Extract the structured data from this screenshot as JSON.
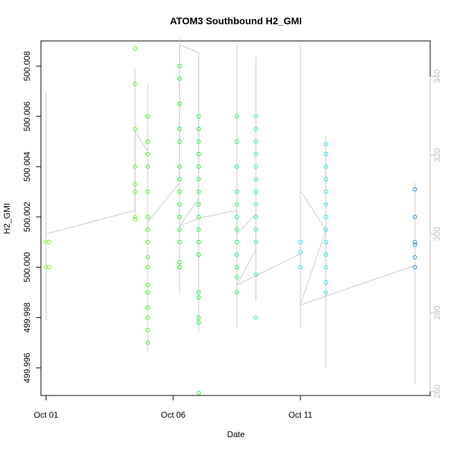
{
  "chart_data": {
    "type": "scatter",
    "title": "ATOM3 Southbound H2_GMI",
    "xlabel": "Date",
    "ylabel": "H2_GMI",
    "x_ticks": [
      "Oct 01",
      "Oct 06",
      "Oct 11"
    ],
    "y_ticks": [
      "499.996",
      "499.998",
      "500.000",
      "500.002",
      "500.004",
      "500.006",
      "500.008"
    ],
    "y2_ticks": [
      "260",
      "280",
      "300",
      "320",
      "340"
    ],
    "xlim": [
      "2016-09-30T19:12",
      "2016-10-16T02:24"
    ],
    "ylim": [
      499.9949,
      500.009
    ],
    "y2lim": [
      259,
      349
    ],
    "grid": false,
    "legend": "none",
    "colors": {
      "axis": "#000000",
      "line": "#c8c8c8",
      "right_axis": "#bfbfbf"
    },
    "series": [
      {
        "type": "points",
        "points": [
          [
            "2016-10-01T00:00",
            500.001,
            "#88ee22"
          ],
          [
            "2016-10-01T03:00",
            500.001,
            "#88ee22"
          ],
          [
            "2016-10-01T00:00",
            500.0,
            "#88ee22"
          ],
          [
            "2016-10-01T03:00",
            500.0,
            "#88ee22"
          ],
          [
            "2016-10-04T12:00",
            500.0087,
            "#66ee22"
          ],
          [
            "2016-10-04T12:00",
            500.0073,
            "#66ee22"
          ],
          [
            "2016-10-04T12:00",
            500.0055,
            "#66ee22"
          ],
          [
            "2016-10-04T12:00",
            500.004,
            "#66ee22"
          ],
          [
            "2016-10-04T12:00",
            500.0033,
            "#66ee22"
          ],
          [
            "2016-10-04T12:00",
            500.003,
            "#66ee22"
          ],
          [
            "2016-10-04T12:00",
            500.002,
            "#66ee22"
          ],
          [
            "2016-10-04T12:00",
            500.0019,
            "#66ee22"
          ],
          [
            "2016-10-05T00:00",
            500.006,
            "#44ee22"
          ],
          [
            "2016-10-05T00:00",
            500.005,
            "#44ee22"
          ],
          [
            "2016-10-05T00:00",
            500.004,
            "#44ee22"
          ],
          [
            "2016-10-05T00:00",
            500.003,
            "#44ee22"
          ],
          [
            "2016-10-05T00:00",
            500.002,
            "#44ee22"
          ],
          [
            "2016-10-05T00:00",
            500.001,
            "#44ee22"
          ],
          [
            "2016-10-05T00:00",
            500.0,
            "#44ee22"
          ],
          [
            "2016-10-05T00:00",
            499.999,
            "#44ee22"
          ],
          [
            "2016-10-05T00:00",
            499.998,
            "#44ee22"
          ],
          [
            "2016-10-05T00:00",
            499.997,
            "#44ee22"
          ],
          [
            "2016-10-05T00:00",
            499.9975,
            "#44ee22"
          ],
          [
            "2016-10-05T00:00",
            499.9984,
            "#44ee22"
          ],
          [
            "2016-10-05T00:00",
            499.9993,
            "#44ee22"
          ],
          [
            "2016-10-05T00:00",
            500.0004,
            "#44ee22"
          ],
          [
            "2016-10-05T00:00",
            500.0015,
            "#44ee22"
          ],
          [
            "2016-10-05T00:00",
            500.0045,
            "#44ee22"
          ],
          [
            "2016-10-06T06:00",
            500.008,
            "#22ee33"
          ],
          [
            "2016-10-06T06:00",
            500.0075,
            "#22ee33"
          ],
          [
            "2016-10-06T06:00",
            500.0065,
            "#22ee33"
          ],
          [
            "2016-10-06T06:00",
            500.0055,
            "#22ee33"
          ],
          [
            "2016-10-06T06:00",
            500.005,
            "#22ee33"
          ],
          [
            "2016-10-06T06:00",
            500.004,
            "#22ee33"
          ],
          [
            "2016-10-06T06:00",
            500.0035,
            "#22ee33"
          ],
          [
            "2016-10-06T06:00",
            500.003,
            "#22ee33"
          ],
          [
            "2016-10-06T06:00",
            500.0025,
            "#22ee33"
          ],
          [
            "2016-10-06T06:00",
            500.002,
            "#22ee33"
          ],
          [
            "2016-10-06T06:00",
            500.0015,
            "#22ee33"
          ],
          [
            "2016-10-06T06:00",
            500.001,
            "#22ee33"
          ],
          [
            "2016-10-06T06:00",
            500.0002,
            "#22ee33"
          ],
          [
            "2016-10-06T06:00",
            500.0,
            "#22ee33"
          ],
          [
            "2016-10-07T00:00",
            500.006,
            "#22ee44"
          ],
          [
            "2016-10-07T00:00",
            500.0055,
            "#22ee44"
          ],
          [
            "2016-10-07T00:00",
            500.005,
            "#22ee44"
          ],
          [
            "2016-10-07T00:00",
            500.0045,
            "#22ee44"
          ],
          [
            "2016-10-07T00:00",
            500.004,
            "#22ee44"
          ],
          [
            "2016-10-07T00:00",
            500.0035,
            "#22ee44"
          ],
          [
            "2016-10-07T00:00",
            500.003,
            "#22ee44"
          ],
          [
            "2016-10-07T00:00",
            500.0025,
            "#22ee44"
          ],
          [
            "2016-10-07T00:00",
            500.002,
            "#22ee44"
          ],
          [
            "2016-10-07T00:00",
            500.0015,
            "#22ee44"
          ],
          [
            "2016-10-07T00:00",
            500.001,
            "#22ee44"
          ],
          [
            "2016-10-07T00:00",
            500.0005,
            "#22ee44"
          ],
          [
            "2016-10-07T00:00",
            499.999,
            "#22ee44"
          ],
          [
            "2016-10-07T00:00",
            499.9988,
            "#22ee44"
          ],
          [
            "2016-10-07T00:00",
            499.998,
            "#22ee44"
          ],
          [
            "2016-10-07T00:00",
            499.9978,
            "#22ee44"
          ],
          [
            "2016-10-07T00:00",
            499.995,
            "#22ee44"
          ],
          [
            "2016-10-08T12:00",
            500.006,
            "#22ee77"
          ],
          [
            "2016-10-08T12:00",
            500.005,
            "#22ee77"
          ],
          [
            "2016-10-08T12:00",
            500.004,
            "#22ee77"
          ],
          [
            "2016-10-08T12:00",
            500.003,
            "#22ee77"
          ],
          [
            "2016-10-08T12:00",
            500.0025,
            "#22ee77"
          ],
          [
            "2016-10-08T12:00",
            500.002,
            "#22ee77"
          ],
          [
            "2016-10-08T12:00",
            500.0015,
            "#22ee77"
          ],
          [
            "2016-10-08T12:00",
            500.001,
            "#22ee77"
          ],
          [
            "2016-10-08T12:00",
            500.0005,
            "#22ee77"
          ],
          [
            "2016-10-08T12:00",
            500.0,
            "#22ee77"
          ],
          [
            "2016-10-08T12:00",
            499.9996,
            "#22ee77"
          ],
          [
            "2016-10-08T12:00",
            499.999,
            "#22ee77"
          ],
          [
            "2016-10-09T06:00",
            500.006,
            "#22ee99"
          ],
          [
            "2016-10-09T06:00",
            500.0055,
            "#22ee99"
          ],
          [
            "2016-10-09T06:00",
            500.005,
            "#22ee99"
          ],
          [
            "2016-10-09T06:00",
            500.0045,
            "#22ee99"
          ],
          [
            "2016-10-09T06:00",
            500.004,
            "#22ee99"
          ],
          [
            "2016-10-09T06:00",
            500.0035,
            "#22ee99"
          ],
          [
            "2016-10-09T06:00",
            500.003,
            "#22ee99"
          ],
          [
            "2016-10-09T06:00",
            500.0025,
            "#22ee99"
          ],
          [
            "2016-10-09T06:00",
            500.002,
            "#22ee99"
          ],
          [
            "2016-10-09T06:00",
            500.0015,
            "#22ee99"
          ],
          [
            "2016-10-09T06:00",
            500.001,
            "#22ee99"
          ],
          [
            "2016-10-09T06:00",
            499.9997,
            "#22ee99"
          ],
          [
            "2016-10-09T06:00",
            499.998,
            "#22ee99"
          ],
          [
            "2016-10-11T00:00",
            500.001,
            "#22eeee"
          ],
          [
            "2016-10-11T00:00",
            500.0006,
            "#22eeee"
          ],
          [
            "2016-10-11T00:00",
            500.0,
            "#22eeee"
          ],
          [
            "2016-10-12T00:00",
            500.0049,
            "#22ddee"
          ],
          [
            "2016-10-12T00:00",
            500.0045,
            "#22ddee"
          ],
          [
            "2016-10-12T00:00",
            500.004,
            "#22ddee"
          ],
          [
            "2016-10-12T00:00",
            500.0035,
            "#22ddee"
          ],
          [
            "2016-10-12T00:00",
            500.003,
            "#22ddee"
          ],
          [
            "2016-10-12T00:00",
            500.0025,
            "#22ddee"
          ],
          [
            "2016-10-12T00:00",
            500.002,
            "#22ddee"
          ],
          [
            "2016-10-12T00:00",
            500.0015,
            "#22ddee"
          ],
          [
            "2016-10-12T00:00",
            500.001,
            "#22ddee"
          ],
          [
            "2016-10-12T00:00",
            500.0005,
            "#22ddee"
          ],
          [
            "2016-10-12T00:00",
            500.0,
            "#22ddee"
          ],
          [
            "2016-10-12T00:00",
            499.9994,
            "#22ddee"
          ],
          [
            "2016-10-12T00:00",
            499.999,
            "#22ddee"
          ],
          [
            "2016-10-15T12:00",
            500.0031,
            "#2299ee"
          ],
          [
            "2016-10-15T12:00",
            500.002,
            "#2299ee"
          ],
          [
            "2016-10-15T12:00",
            500.001,
            "#2299ee"
          ],
          [
            "2016-10-15T12:00",
            500.0009,
            "#2299ee"
          ],
          [
            "2016-10-15T12:00",
            500.0004,
            "#2299ee"
          ],
          [
            "2016-10-15T12:00",
            500.0,
            "#2299ee"
          ]
        ]
      },
      {
        "type": "line",
        "axis": "right",
        "color": "#c8c8c8",
        "bursts": [
          [
            "2016-10-01T00:00",
            278,
            336
          ],
          [
            "2016-10-04T12:00",
            305,
            342
          ],
          [
            "2016-10-05T00:00",
            270,
            338
          ],
          [
            "2016-10-06T06:00",
            285,
            350
          ],
          [
            "2016-10-07T00:00",
            275,
            345
          ],
          [
            "2016-10-08T12:00",
            276,
            348
          ],
          [
            "2016-10-09T06:00",
            283,
            345
          ],
          [
            "2016-10-11T00:00",
            276,
            348
          ],
          [
            "2016-10-12T00:00",
            266,
            325
          ],
          [
            "2016-10-15T12:00",
            262,
            313
          ]
        ],
        "trace": [
          [
            "2016-10-01T00:00",
            300
          ],
          [
            "2016-10-04T12:00",
            306
          ],
          [
            "2016-10-04T12:00",
            326
          ],
          [
            "2016-10-05T00:00",
            321
          ],
          [
            "2016-10-05T00:00",
            303
          ],
          [
            "2016-10-06T06:00",
            313
          ],
          [
            "2016-10-06T06:00",
            348
          ],
          [
            "2016-10-07T00:00",
            346
          ],
          [
            "2016-10-07T00:00",
            309
          ],
          [
            "2016-10-06T06:00",
            302
          ],
          [
            "2016-10-07T00:00",
            304
          ],
          [
            "2016-10-08T12:00",
            306
          ],
          [
            "2016-10-08T12:00",
            300
          ],
          [
            "2016-10-09T06:00",
            305
          ],
          [
            "2016-10-09T06:00",
            296
          ],
          [
            "2016-10-08T12:00",
            287
          ],
          [
            "2016-10-11T00:00",
            295
          ],
          [
            "2016-10-11T00:00",
            311
          ],
          [
            "2016-10-12T00:00",
            301
          ],
          [
            "2016-10-11T00:00",
            282
          ],
          [
            "2016-10-15T12:00",
            292
          ]
        ]
      }
    ]
  }
}
